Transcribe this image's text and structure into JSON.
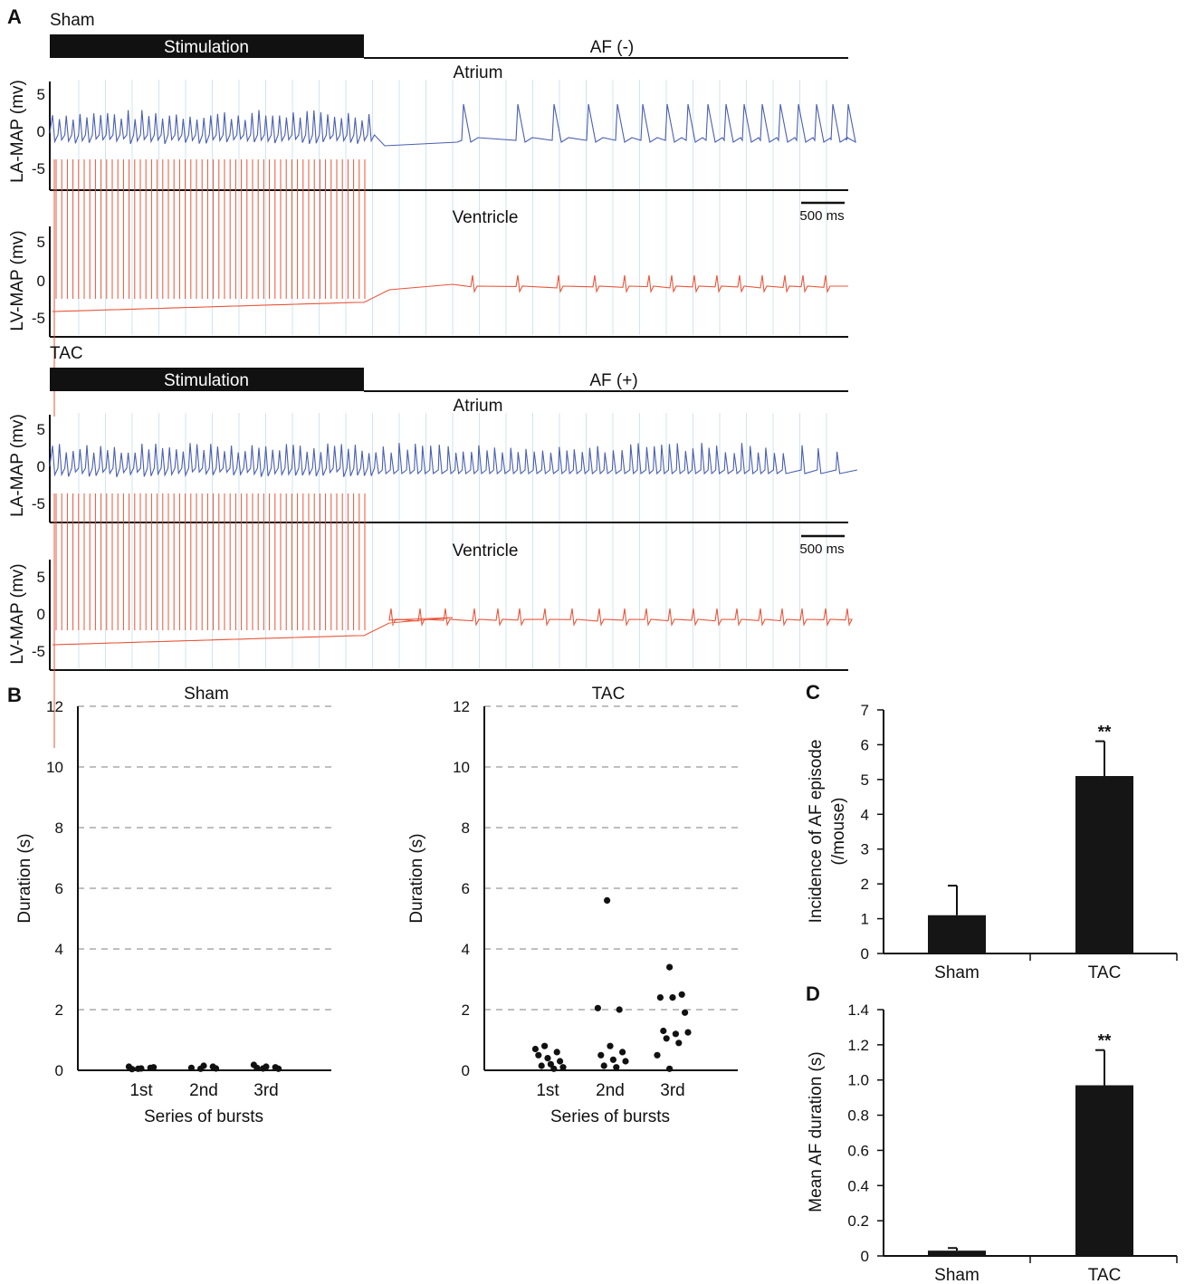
{
  "panels": {
    "A": "A",
    "B": "B",
    "C": "C",
    "D": "D"
  },
  "colors": {
    "atrium_trace": "#4a5fb0",
    "ventricle_trace": "#e8553a",
    "stim_bar": "#111111",
    "grid": "#cfe6ee",
    "bar_fill": "#151515"
  },
  "traces": {
    "groups": [
      {
        "group": "Sham",
        "stim_label": "Stimulation",
        "af_label": "AF (-)",
        "af": false,
        "atrium": {
          "title": "Atrium",
          "ylabel": "LA-MAP (mv)",
          "ticks": [
            "5",
            "0",
            "-5"
          ]
        },
        "ventricle": {
          "title": "Ventricle",
          "ylabel": "LV-MAP (mv)",
          "ticks": [
            "5",
            "0",
            "-5"
          ]
        },
        "scalebar": "500 ms"
      },
      {
        "group": "TAC",
        "stim_label": "Stimulation",
        "af_label": "AF (+)",
        "af": true,
        "atrium": {
          "title": "Atrium",
          "ylabel": "LA-MAP (mv)",
          "ticks": [
            "5",
            "0",
            "-5"
          ]
        },
        "ventricle": {
          "title": "Ventricle",
          "ylabel": "LV-MAP (mv)",
          "ticks": [
            "5",
            "0",
            "-5"
          ]
        },
        "scalebar": "500 ms"
      }
    ]
  },
  "chart_data": [
    {
      "panel": "B",
      "type": "scatter",
      "title": "Sham",
      "xlabel": "Series of bursts",
      "ylabel": "Duration (s)",
      "categories": [
        "1st",
        "2nd",
        "3rd"
      ],
      "ylim": [
        0,
        12
      ],
      "yticks": [
        0,
        2,
        4,
        6,
        8,
        10,
        12
      ],
      "grid": "dashed horizontal",
      "points": [
        {
          "x": "1st",
          "y": 0.05
        },
        {
          "x": "1st",
          "y": 0.08
        },
        {
          "x": "1st",
          "y": 0.12
        },
        {
          "x": "1st",
          "y": 0.06
        },
        {
          "x": "1st",
          "y": 0.1
        },
        {
          "x": "1st",
          "y": 0.04
        },
        {
          "x": "2nd",
          "y": 0.05
        },
        {
          "x": "2nd",
          "y": 0.12
        },
        {
          "x": "2nd",
          "y": 0.08
        },
        {
          "x": "2nd",
          "y": 0.15
        },
        {
          "x": "2nd",
          "y": 0.06
        },
        {
          "x": "3rd",
          "y": 0.06
        },
        {
          "x": "3rd",
          "y": 0.1
        },
        {
          "x": "3rd",
          "y": 0.18
        },
        {
          "x": "3rd",
          "y": 0.12
        },
        {
          "x": "3rd",
          "y": 0.05
        },
        {
          "x": "3rd",
          "y": 0.08
        }
      ]
    },
    {
      "panel": "B",
      "type": "scatter",
      "title": "TAC",
      "xlabel": "Series of bursts",
      "ylabel": "Duration (s)",
      "categories": [
        "1st",
        "2nd",
        "3rd"
      ],
      "ylim": [
        0,
        12
      ],
      "yticks": [
        0,
        2,
        4,
        6,
        8,
        10,
        12
      ],
      "grid": "dashed horizontal",
      "points": [
        {
          "x": "1st",
          "y": 0.8
        },
        {
          "x": "1st",
          "y": 0.6
        },
        {
          "x": "1st",
          "y": 0.7
        },
        {
          "x": "1st",
          "y": 0.4
        },
        {
          "x": "1st",
          "y": 0.3
        },
        {
          "x": "1st",
          "y": 0.5
        },
        {
          "x": "1st",
          "y": 0.2
        },
        {
          "x": "1st",
          "y": 0.1
        },
        {
          "x": "1st",
          "y": 0.15
        },
        {
          "x": "1st",
          "y": 0.05
        },
        {
          "x": "2nd",
          "y": 5.6
        },
        {
          "x": "2nd",
          "y": 2.0
        },
        {
          "x": "2nd",
          "y": 2.05
        },
        {
          "x": "2nd",
          "y": 0.8
        },
        {
          "x": "2nd",
          "y": 0.6
        },
        {
          "x": "2nd",
          "y": 0.5
        },
        {
          "x": "2nd",
          "y": 0.35
        },
        {
          "x": "2nd",
          "y": 0.3
        },
        {
          "x": "2nd",
          "y": 0.15
        },
        {
          "x": "2nd",
          "y": 0.1
        },
        {
          "x": "3rd",
          "y": 3.4
        },
        {
          "x": "3rd",
          "y": 2.5
        },
        {
          "x": "3rd",
          "y": 2.4
        },
        {
          "x": "3rd",
          "y": 2.4
        },
        {
          "x": "3rd",
          "y": 1.9
        },
        {
          "x": "3rd",
          "y": 1.3
        },
        {
          "x": "3rd",
          "y": 1.2
        },
        {
          "x": "3rd",
          "y": 1.25
        },
        {
          "x": "3rd",
          "y": 1.05
        },
        {
          "x": "3rd",
          "y": 0.9
        },
        {
          "x": "3rd",
          "y": 0.5
        },
        {
          "x": "3rd",
          "y": 0.05
        }
      ]
    },
    {
      "panel": "C",
      "type": "bar",
      "categories": [
        "Sham",
        "TAC"
      ],
      "values": [
        1.1,
        5.1
      ],
      "errors": [
        0.85,
        1.0
      ],
      "annotations": [
        "",
        "**"
      ],
      "ylabel": "Incidence of AF episode",
      "ylabel2": "(/mouse)",
      "ylim": [
        0,
        7
      ],
      "yticks": [
        "0",
        "1",
        "2",
        "3",
        "4",
        "5",
        "6",
        "7"
      ]
    },
    {
      "panel": "D",
      "type": "bar",
      "categories": [
        "Sham",
        "TAC"
      ],
      "values": [
        0.03,
        0.97
      ],
      "errors": [
        0.015,
        0.2
      ],
      "annotations": [
        "",
        "**"
      ],
      "ylabel": "Mean AF duration (s)",
      "ylim": [
        0,
        1.4
      ],
      "yticks": [
        "0",
        "0.2",
        "0.4",
        "0.6",
        "0.8",
        "1.0",
        "1.2",
        "1.4"
      ]
    }
  ]
}
